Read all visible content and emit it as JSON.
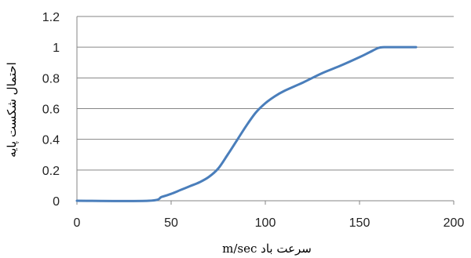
{
  "chart_data": {
    "type": "line",
    "title": "",
    "xlabel": "سرعت باد m/sec",
    "ylabel": "احتمال شکست پایه",
    "xlim": [
      0,
      200
    ],
    "ylim": [
      0,
      1.2
    ],
    "x_ticks": [
      0,
      50,
      100,
      150,
      200
    ],
    "y_ticks": [
      0,
      0.2,
      0.4,
      0.6,
      0.8,
      1,
      1.2
    ],
    "grid": "horizontal",
    "legend": "none",
    "colors": {
      "series": "#4A7EBB",
      "grid": "#868686",
      "axis": "#868686"
    },
    "series": [
      {
        "x": [
          0,
          38,
          45,
          50,
          55,
          60,
          65,
          70,
          75,
          80,
          85,
          90,
          95,
          100,
          105,
          110,
          120,
          130,
          140,
          150,
          155,
          160,
          163,
          170,
          180
        ],
        "values": [
          0,
          0,
          0.025,
          0.045,
          0.07,
          0.095,
          0.12,
          0.155,
          0.21,
          0.3,
          0.395,
          0.49,
          0.575,
          0.635,
          0.68,
          0.715,
          0.77,
          0.83,
          0.88,
          0.935,
          0.965,
          0.995,
          1.0,
          1.0,
          1.0
        ]
      }
    ]
  }
}
